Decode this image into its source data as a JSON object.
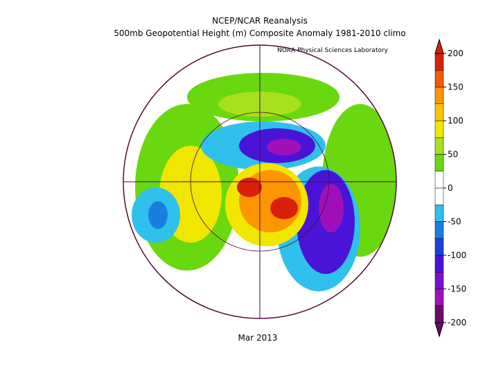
{
  "header": {
    "title": "NCEP/NCAR Reanalysis",
    "subtitle": "500mb Geopotential Height (m) Composite Anomaly 1981-2010 climo",
    "credit": "NOAA Physical Sciences Laboratory"
  },
  "map": {
    "date": "Mar 2013"
  },
  "colorbar": {
    "range": [
      -200,
      200
    ],
    "ticks": [
      -200,
      -150,
      -100,
      -50,
      0,
      50,
      100,
      150,
      200
    ],
    "colors": [
      "#6a0a6a",
      "#a010b8",
      "#7a10d0",
      "#4a14d8",
      "#1e40d8",
      "#1a7ee0",
      "#30c0ec",
      "#ffffff",
      "#ffffff",
      "#6ad80e",
      "#a8e01c",
      "#f0e600",
      "#fcc400",
      "#fc9600",
      "#f45a00",
      "#d8200a"
    ]
  }
}
